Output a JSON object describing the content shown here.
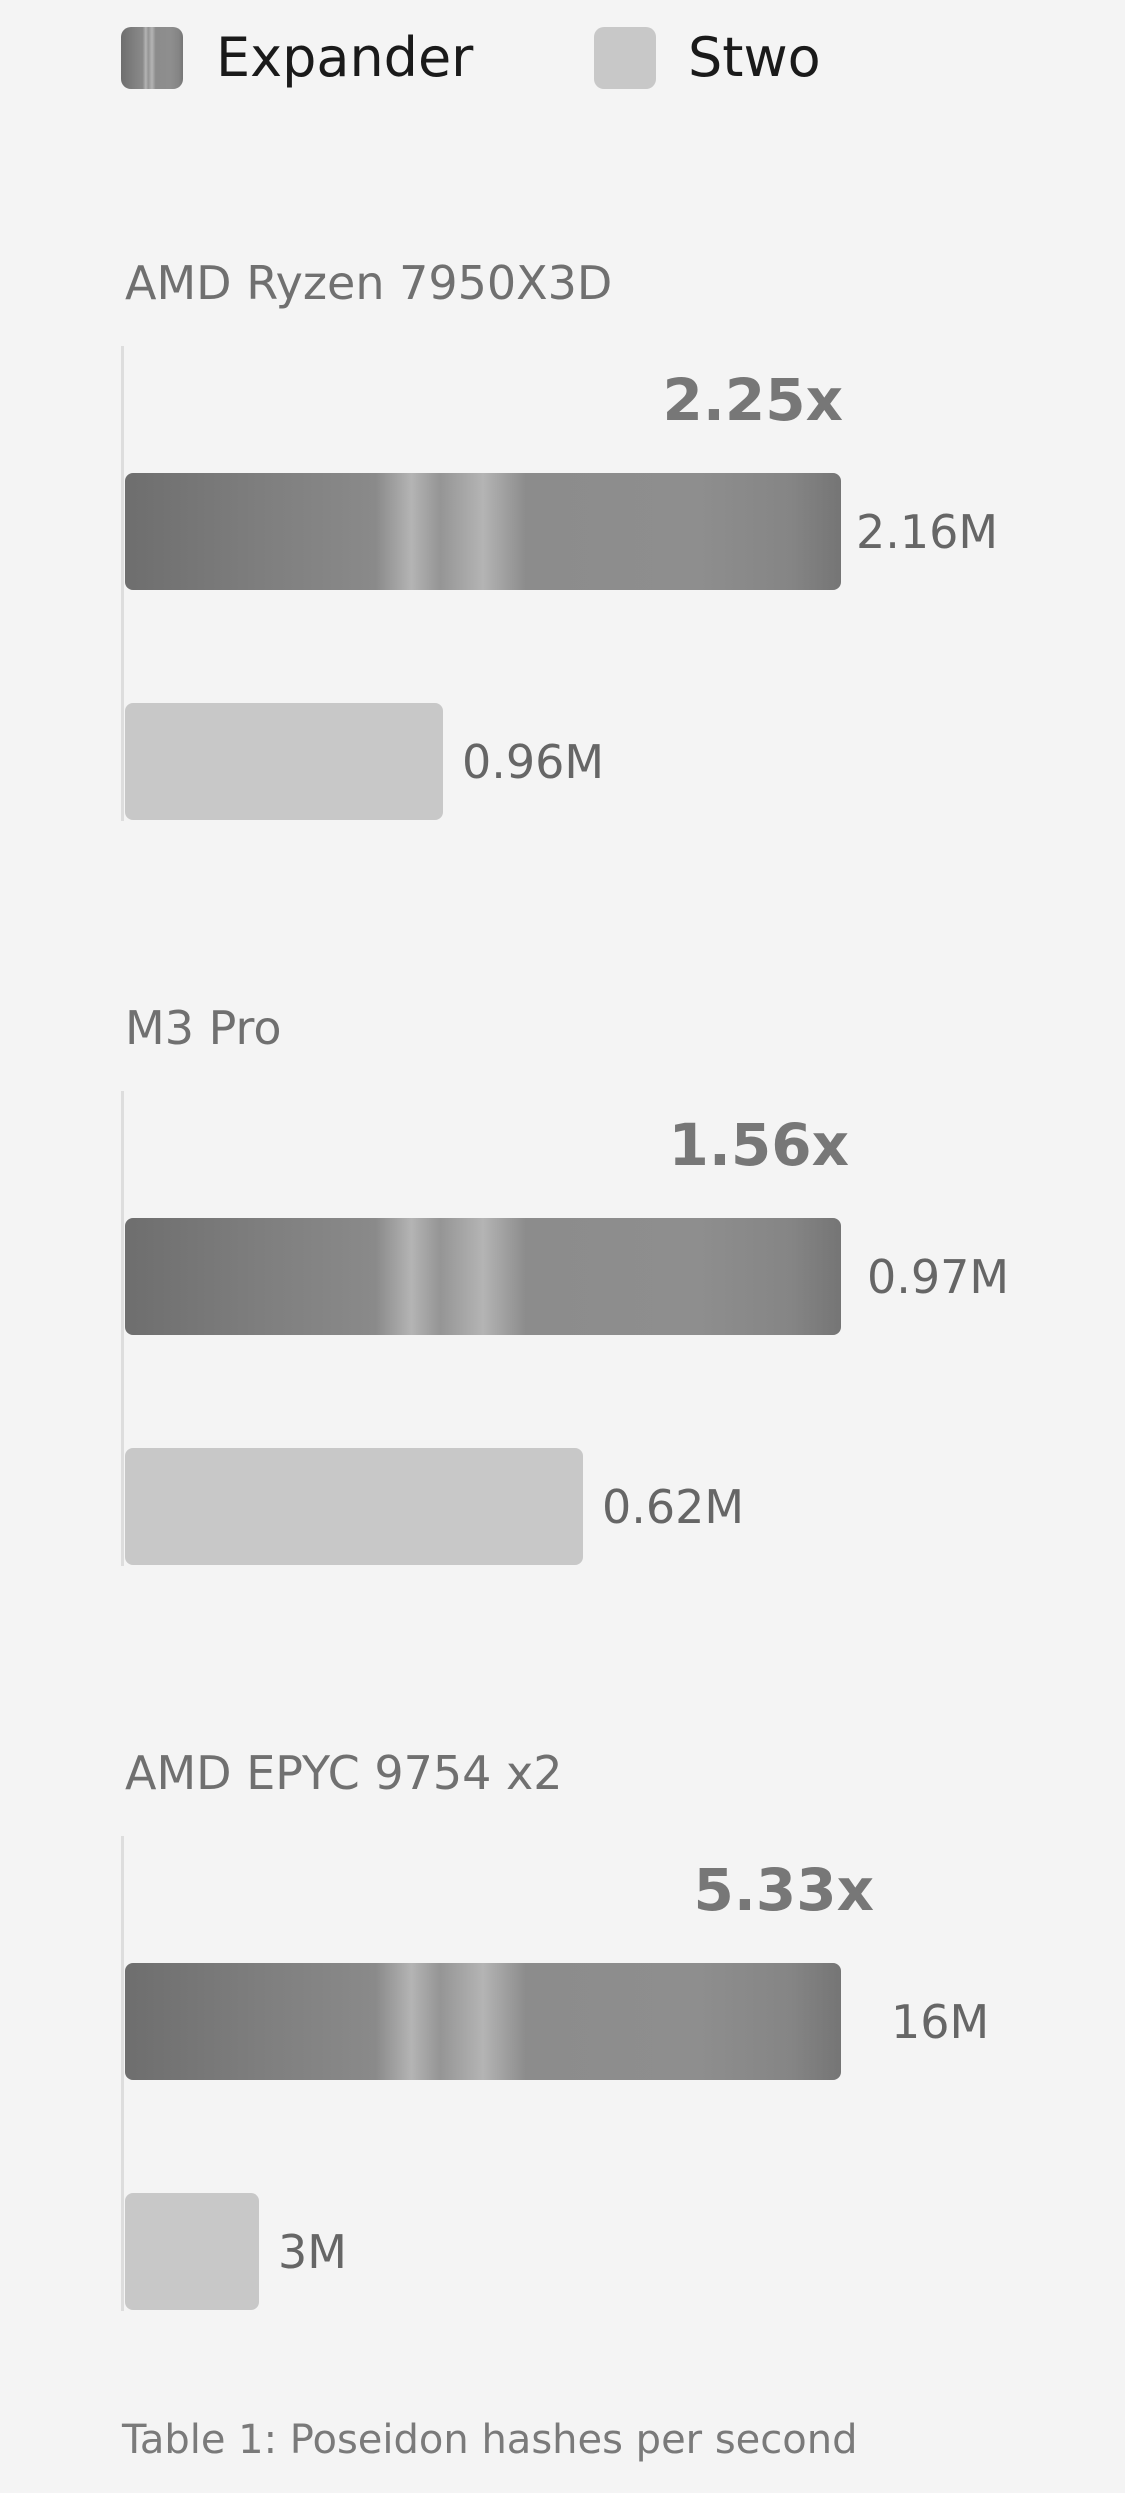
{
  "legend": {
    "expander_label": "Expander",
    "stwo_label": "Stwo"
  },
  "colors": {
    "expander": "#8a8a8a",
    "stwo": "#c8c8c8",
    "background": "#f4f4f4"
  },
  "caption": "Table 1: Poseidon hashes per second",
  "chart_data": {
    "type": "bar",
    "orientation": "horizontal",
    "categories": [
      "AMD Ryzen 7950X3D",
      "M3 Pro",
      "AMD EPYC 9754 x2"
    ],
    "series": [
      {
        "name": "Expander",
        "values": [
          2.16,
          0.97,
          16
        ],
        "labels": [
          "2.16M",
          "0.97M",
          "16M"
        ]
      },
      {
        "name": "Stwo",
        "values": [
          0.96,
          0.62,
          3
        ],
        "labels": [
          "0.96M",
          "0.62M",
          "3M"
        ]
      }
    ],
    "ratios": [
      "2.25x",
      "1.56x",
      "5.33x"
    ],
    "title": "",
    "xlabel": "",
    "ylabel": "",
    "grid": false,
    "legend_position": "top"
  }
}
